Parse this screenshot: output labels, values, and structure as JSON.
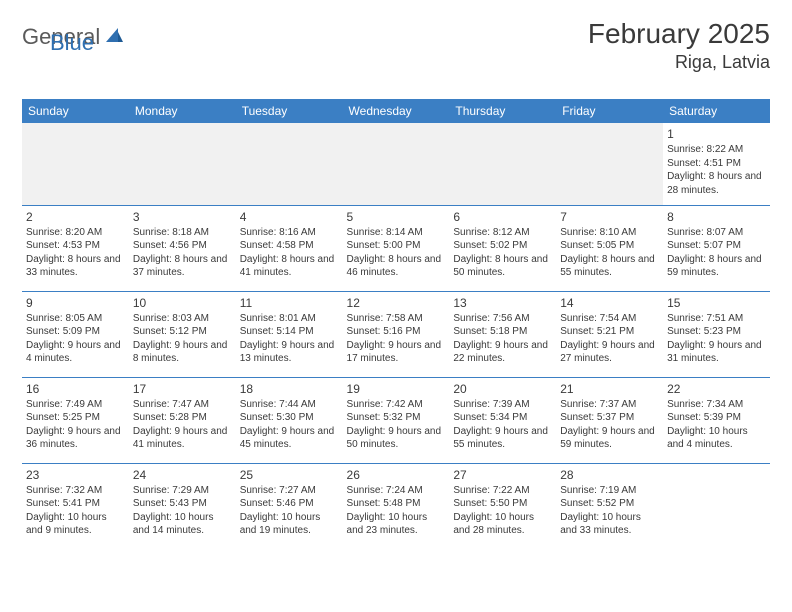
{
  "logo": {
    "text1": "General",
    "text2": "Blue"
  },
  "title": "February 2025",
  "location": "Riga, Latvia",
  "colors": {
    "header_bg": "#3b7fc4",
    "header_text": "#ffffff",
    "border": "#3b7fc4",
    "logo_accent": "#2f6fb0",
    "text": "#3a3a3a",
    "empty_bg": "#f1f1f1"
  },
  "daynames": [
    "Sunday",
    "Monday",
    "Tuesday",
    "Wednesday",
    "Thursday",
    "Friday",
    "Saturday"
  ],
  "weeks": [
    [
      null,
      null,
      null,
      null,
      null,
      null,
      {
        "n": "1",
        "sr": "8:22 AM",
        "ss": "4:51 PM",
        "dl": "8 hours and 28 minutes."
      }
    ],
    [
      {
        "n": "2",
        "sr": "8:20 AM",
        "ss": "4:53 PM",
        "dl": "8 hours and 33 minutes."
      },
      {
        "n": "3",
        "sr": "8:18 AM",
        "ss": "4:56 PM",
        "dl": "8 hours and 37 minutes."
      },
      {
        "n": "4",
        "sr": "8:16 AM",
        "ss": "4:58 PM",
        "dl": "8 hours and 41 minutes."
      },
      {
        "n": "5",
        "sr": "8:14 AM",
        "ss": "5:00 PM",
        "dl": "8 hours and 46 minutes."
      },
      {
        "n": "6",
        "sr": "8:12 AM",
        "ss": "5:02 PM",
        "dl": "8 hours and 50 minutes."
      },
      {
        "n": "7",
        "sr": "8:10 AM",
        "ss": "5:05 PM",
        "dl": "8 hours and 55 minutes."
      },
      {
        "n": "8",
        "sr": "8:07 AM",
        "ss": "5:07 PM",
        "dl": "8 hours and 59 minutes."
      }
    ],
    [
      {
        "n": "9",
        "sr": "8:05 AM",
        "ss": "5:09 PM",
        "dl": "9 hours and 4 minutes."
      },
      {
        "n": "10",
        "sr": "8:03 AM",
        "ss": "5:12 PM",
        "dl": "9 hours and 8 minutes."
      },
      {
        "n": "11",
        "sr": "8:01 AM",
        "ss": "5:14 PM",
        "dl": "9 hours and 13 minutes."
      },
      {
        "n": "12",
        "sr": "7:58 AM",
        "ss": "5:16 PM",
        "dl": "9 hours and 17 minutes."
      },
      {
        "n": "13",
        "sr": "7:56 AM",
        "ss": "5:18 PM",
        "dl": "9 hours and 22 minutes."
      },
      {
        "n": "14",
        "sr": "7:54 AM",
        "ss": "5:21 PM",
        "dl": "9 hours and 27 minutes."
      },
      {
        "n": "15",
        "sr": "7:51 AM",
        "ss": "5:23 PM",
        "dl": "9 hours and 31 minutes."
      }
    ],
    [
      {
        "n": "16",
        "sr": "7:49 AM",
        "ss": "5:25 PM",
        "dl": "9 hours and 36 minutes."
      },
      {
        "n": "17",
        "sr": "7:47 AM",
        "ss": "5:28 PM",
        "dl": "9 hours and 41 minutes."
      },
      {
        "n": "18",
        "sr": "7:44 AM",
        "ss": "5:30 PM",
        "dl": "9 hours and 45 minutes."
      },
      {
        "n": "19",
        "sr": "7:42 AM",
        "ss": "5:32 PM",
        "dl": "9 hours and 50 minutes."
      },
      {
        "n": "20",
        "sr": "7:39 AM",
        "ss": "5:34 PM",
        "dl": "9 hours and 55 minutes."
      },
      {
        "n": "21",
        "sr": "7:37 AM",
        "ss": "5:37 PM",
        "dl": "9 hours and 59 minutes."
      },
      {
        "n": "22",
        "sr": "7:34 AM",
        "ss": "5:39 PM",
        "dl": "10 hours and 4 minutes."
      }
    ],
    [
      {
        "n": "23",
        "sr": "7:32 AM",
        "ss": "5:41 PM",
        "dl": "10 hours and 9 minutes."
      },
      {
        "n": "24",
        "sr": "7:29 AM",
        "ss": "5:43 PM",
        "dl": "10 hours and 14 minutes."
      },
      {
        "n": "25",
        "sr": "7:27 AM",
        "ss": "5:46 PM",
        "dl": "10 hours and 19 minutes."
      },
      {
        "n": "26",
        "sr": "7:24 AM",
        "ss": "5:48 PM",
        "dl": "10 hours and 23 minutes."
      },
      {
        "n": "27",
        "sr": "7:22 AM",
        "ss": "5:50 PM",
        "dl": "10 hours and 28 minutes."
      },
      {
        "n": "28",
        "sr": "7:19 AM",
        "ss": "5:52 PM",
        "dl": "10 hours and 33 minutes."
      },
      null
    ]
  ],
  "labels": {
    "sunrise": "Sunrise: ",
    "sunset": "Sunset: ",
    "daylight": "Daylight: "
  }
}
